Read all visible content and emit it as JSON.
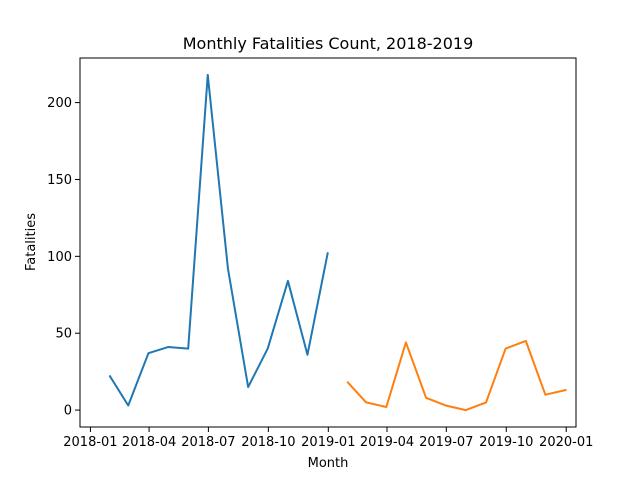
{
  "chart_data": {
    "type": "line",
    "title": "Monthly Fatalities Count, 2018-2019",
    "xlabel": "Month",
    "ylabel": "Fatalities",
    "x_tick_labels": [
      "2018-01",
      "2018-04",
      "2018-07",
      "2018-10",
      "2019-01",
      "2019-04",
      "2019-07",
      "2019-10",
      "2020-01"
    ],
    "y_ticks": [
      0,
      50,
      100,
      150,
      200
    ],
    "xlim": [
      "2017-12-16",
      "2020-01-16"
    ],
    "ylim": [
      -11,
      229
    ],
    "grid": false,
    "legend": "none",
    "series": [
      {
        "color": "#1f77b4",
        "x": [
          "2018-01-31",
          "2018-02-28",
          "2018-03-31",
          "2018-04-30",
          "2018-05-31",
          "2018-06-30",
          "2018-07-31",
          "2018-08-31",
          "2018-09-30",
          "2018-10-31",
          "2018-11-30",
          "2018-12-31"
        ],
        "values": [
          22,
          3,
          37,
          41,
          40,
          218,
          92,
          15,
          40,
          84,
          36,
          102
        ]
      },
      {
        "color": "#ff7f0e",
        "x": [
          "2019-01-31",
          "2019-02-28",
          "2019-03-31",
          "2019-04-30",
          "2019-05-31",
          "2019-06-30",
          "2019-07-31",
          "2019-08-31",
          "2019-09-30",
          "2019-10-31",
          "2019-11-30",
          "2019-12-31"
        ],
        "values": [
          18,
          5,
          2,
          44,
          8,
          3,
          0,
          5,
          40,
          45,
          10,
          13
        ]
      }
    ]
  }
}
